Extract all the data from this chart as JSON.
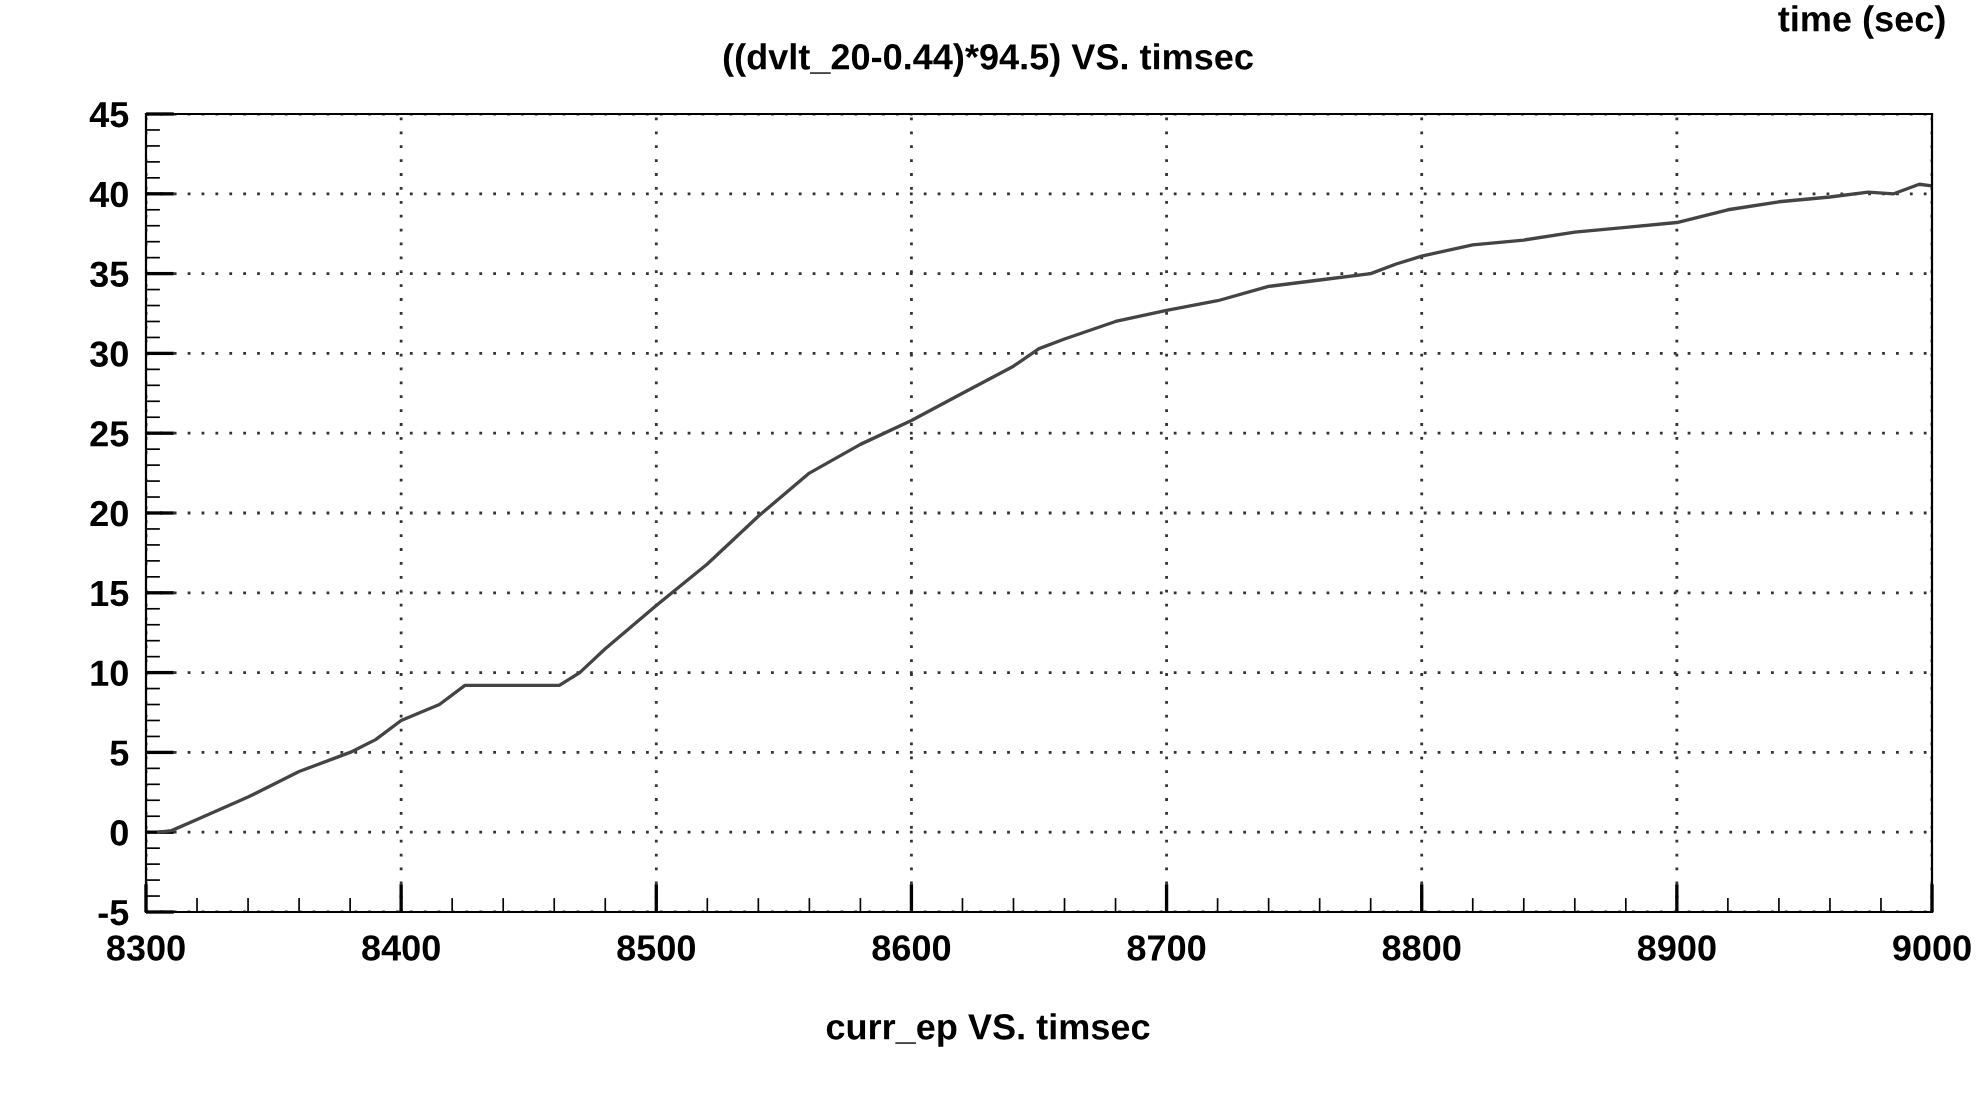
{
  "chart_data": {
    "type": "line",
    "title": "((dvlt_20-0.44)*94.5) VS. timsec",
    "annotations": [
      "time (sec)",
      "curr_ep VS. timsec"
    ],
    "x": [
      8305,
      8310,
      8320,
      8340,
      8360,
      8380,
      8390,
      8400,
      8415,
      8425,
      8440,
      8462,
      8470,
      8480,
      8500,
      8520,
      8540,
      8560,
      8580,
      8600,
      8620,
      8640,
      8650,
      8660,
      8680,
      8700,
      8720,
      8740,
      8760,
      8780,
      8790,
      8800,
      8820,
      8840,
      8860,
      8880,
      8900,
      8920,
      8940,
      8960,
      8975,
      8985,
      8995,
      9000
    ],
    "series": [
      {
        "color": "#444444",
        "values": [
          0,
          0.1,
          0.8,
          2.2,
          3.8,
          5.0,
          5.8,
          7.0,
          8.0,
          9.2,
          9.2,
          9.2,
          10.0,
          11.5,
          14.2,
          16.8,
          19.8,
          22.5,
          24.3,
          25.8,
          27.5,
          29.2,
          30.3,
          30.9,
          32.0,
          32.7,
          33.3,
          34.2,
          34.6,
          35.0,
          35.6,
          36.1,
          36.8,
          37.1,
          37.6,
          37.9,
          38.2,
          39.0,
          39.5,
          39.8,
          40.1,
          40.0,
          40.6,
          40.5
        ]
      }
    ],
    "xlim": [
      8300,
      9000
    ],
    "xticks": [
      8300,
      8400,
      8500,
      8600,
      8700,
      8800,
      8900,
      9000
    ],
    "ylim": [
      -5,
      45
    ],
    "yticks": [
      -5,
      0,
      5,
      10,
      15,
      20,
      25,
      30,
      35,
      40,
      45
    ],
    "grid": true,
    "legend": false,
    "marker": "none",
    "line_style": "solid"
  }
}
